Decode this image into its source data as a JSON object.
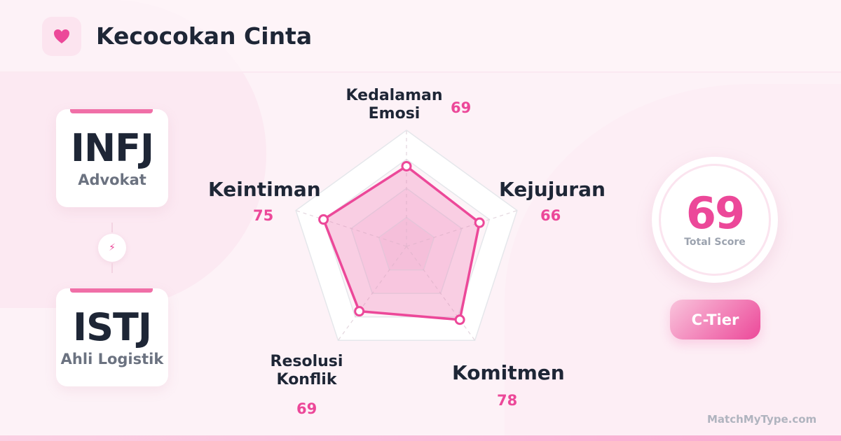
{
  "header": {
    "title": "Kecocokan Cinta",
    "icon": "heart-icon"
  },
  "types": [
    {
      "code": "INFJ",
      "name": "Advokat"
    },
    {
      "code": "ISTJ",
      "name": "Ahli Logistik"
    }
  ],
  "link_icon": "lightning-icon",
  "chart_data": {
    "type": "radar",
    "categories": [
      "Kedalaman Emosi",
      "Kejujuran",
      "Komitmen",
      "Resolusi Konflik",
      "Keintiman"
    ],
    "values": [
      69,
      66,
      78,
      69,
      75
    ],
    "range": [
      0,
      100
    ],
    "grid_levels": 4,
    "color": "#ec4899"
  },
  "labels": {
    "c0a": "Kedalaman",
    "c0b": "Emosi",
    "c1": "Kejujuran",
    "c2": "Komitmen",
    "c3a": "Resolusi",
    "c3b": "Konflik",
    "c4": "Keintiman",
    "v0": "69",
    "v1": "66",
    "v2": "78",
    "v3": "69",
    "v4": "75"
  },
  "score": {
    "value": "69",
    "caption": "Total Score",
    "tier": "C-Tier"
  },
  "brand": "MatchMyType.com",
  "colors": {
    "accent": "#ec4899",
    "text": "#1e2636"
  }
}
